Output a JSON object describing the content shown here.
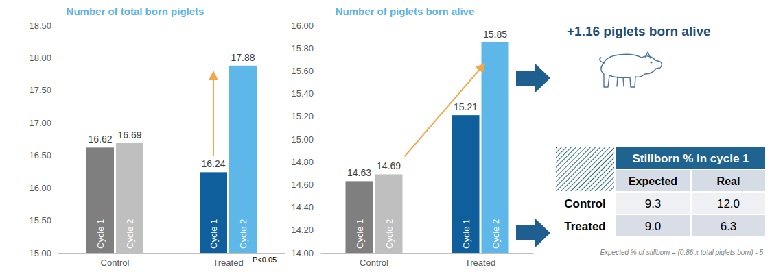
{
  "chart_data": [
    {
      "type": "bar",
      "title": "Number of total born piglets",
      "categories": [
        "Control",
        "Treated"
      ],
      "series": [
        {
          "name": "Cycle 1",
          "colors": [
            "#7f7f7f",
            "#0e5f9c"
          ],
          "values": [
            16.62,
            16.24
          ]
        },
        {
          "name": "Cycle 2",
          "colors": [
            "#bfbfbf",
            "#5db7e8"
          ],
          "values": [
            16.69,
            17.88
          ]
        }
      ],
      "ylim": [
        15,
        18.5
      ],
      "yticks": [
        {
          "value": 15,
          "label": "15.00"
        },
        {
          "value": 15.5,
          "label": "15.50"
        },
        {
          "value": 16,
          "label": "16.00"
        },
        {
          "value": 16.5,
          "label": "16.50"
        },
        {
          "value": 17,
          "label": "17.00"
        },
        {
          "value": 17.5,
          "label": "17.50"
        },
        {
          "value": 18,
          "label": "18.00"
        },
        {
          "value": 18.5,
          "label": "18.50"
        }
      ],
      "grid": false,
      "data_labels": true,
      "annotations": [
        "P<0.05"
      ]
    },
    {
      "type": "bar",
      "title": "Number of piglets born alive",
      "categories": [
        "Control",
        "Treated"
      ],
      "series": [
        {
          "name": "Cycle 1",
          "colors": [
            "#7f7f7f",
            "#0e5f9c"
          ],
          "values": [
            14.63,
            15.21
          ]
        },
        {
          "name": "Cycle 2",
          "colors": [
            "#bfbfbf",
            "#5db7e8"
          ],
          "values": [
            14.69,
            15.85
          ]
        }
      ],
      "ylim": [
        14,
        16
      ],
      "yticks": [
        {
          "value": 14,
          "label": "14.00"
        },
        {
          "value": 14.2,
          "label": "14.20"
        },
        {
          "value": 14.4,
          "label": "14.40"
        },
        {
          "value": 14.6,
          "label": "14.60"
        },
        {
          "value": 14.8,
          "label": "14.80"
        },
        {
          "value": 15,
          "label": "15.00"
        },
        {
          "value": 15.2,
          "label": "15.20"
        },
        {
          "value": 15.4,
          "label": "15.40"
        },
        {
          "value": 15.6,
          "label": "15.60"
        },
        {
          "value": 15.8,
          "label": "15.80"
        },
        {
          "value": 16,
          "label": "16.00"
        }
      ],
      "grid": false,
      "data_labels": true
    }
  ],
  "callout": {
    "text": "+1.16 piglets born alive"
  },
  "table": {
    "title": "Stillborn % in cycle 1",
    "columns": [
      "Expected",
      "Real"
    ],
    "rows": [
      [
        "Control",
        "9.3",
        "12.0"
      ],
      [
        "Treated",
        "9.0",
        "6.3"
      ]
    ],
    "footnote": "Expected % of stillborn = (0.86 x total piglets born) - 5"
  }
}
